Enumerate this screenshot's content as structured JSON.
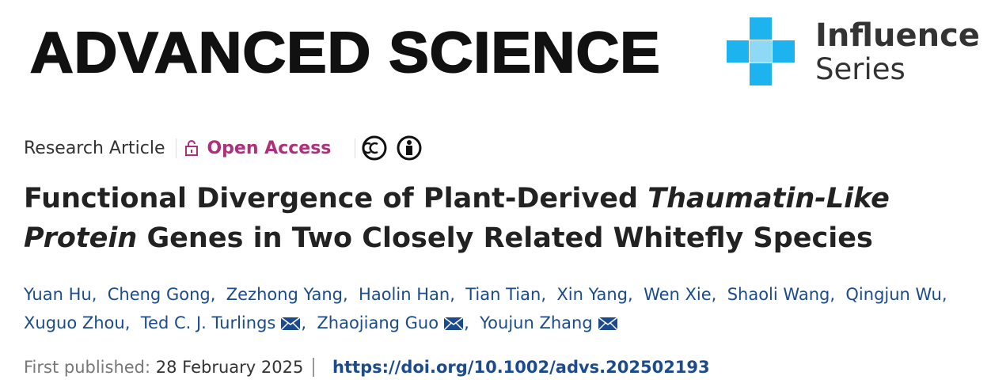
{
  "header": {
    "journal": "ADVANCED SCIENCE",
    "series_line1": "Influence",
    "series_line2": "Series"
  },
  "article_type": "Research Article",
  "access": "Open Access",
  "title": {
    "part1": "Functional Divergence of Plant-Derived",
    "italic": "Thaumatin-Like Protein",
    "part2": "Genes in Two Closely Related Whitefly Species"
  },
  "authors": [
    {
      "name": "Yuan Hu",
      "corresponding": false
    },
    {
      "name": "Cheng Gong",
      "corresponding": false
    },
    {
      "name": "Zezhong Yang",
      "corresponding": false
    },
    {
      "name": "Haolin Han",
      "corresponding": false
    },
    {
      "name": "Tian Tian",
      "corresponding": false
    },
    {
      "name": "Xin Yang",
      "corresponding": false
    },
    {
      "name": "Wen Xie",
      "corresponding": false
    },
    {
      "name": "Shaoli Wang",
      "corresponding": false
    },
    {
      "name": "Qingjun Wu",
      "corresponding": false
    },
    {
      "name": "Xuguo Zhou",
      "corresponding": false
    },
    {
      "name": "Ted C. J. Turlings",
      "corresponding": true
    },
    {
      "name": "Zhaojiang Guo",
      "corresponding": true
    },
    {
      "name": "Youjun Zhang",
      "corresponding": true
    }
  ],
  "published": {
    "label": "First published:",
    "date": "28 February 2025",
    "doi": "https://doi.org/10.1002/advs.202502193"
  }
}
